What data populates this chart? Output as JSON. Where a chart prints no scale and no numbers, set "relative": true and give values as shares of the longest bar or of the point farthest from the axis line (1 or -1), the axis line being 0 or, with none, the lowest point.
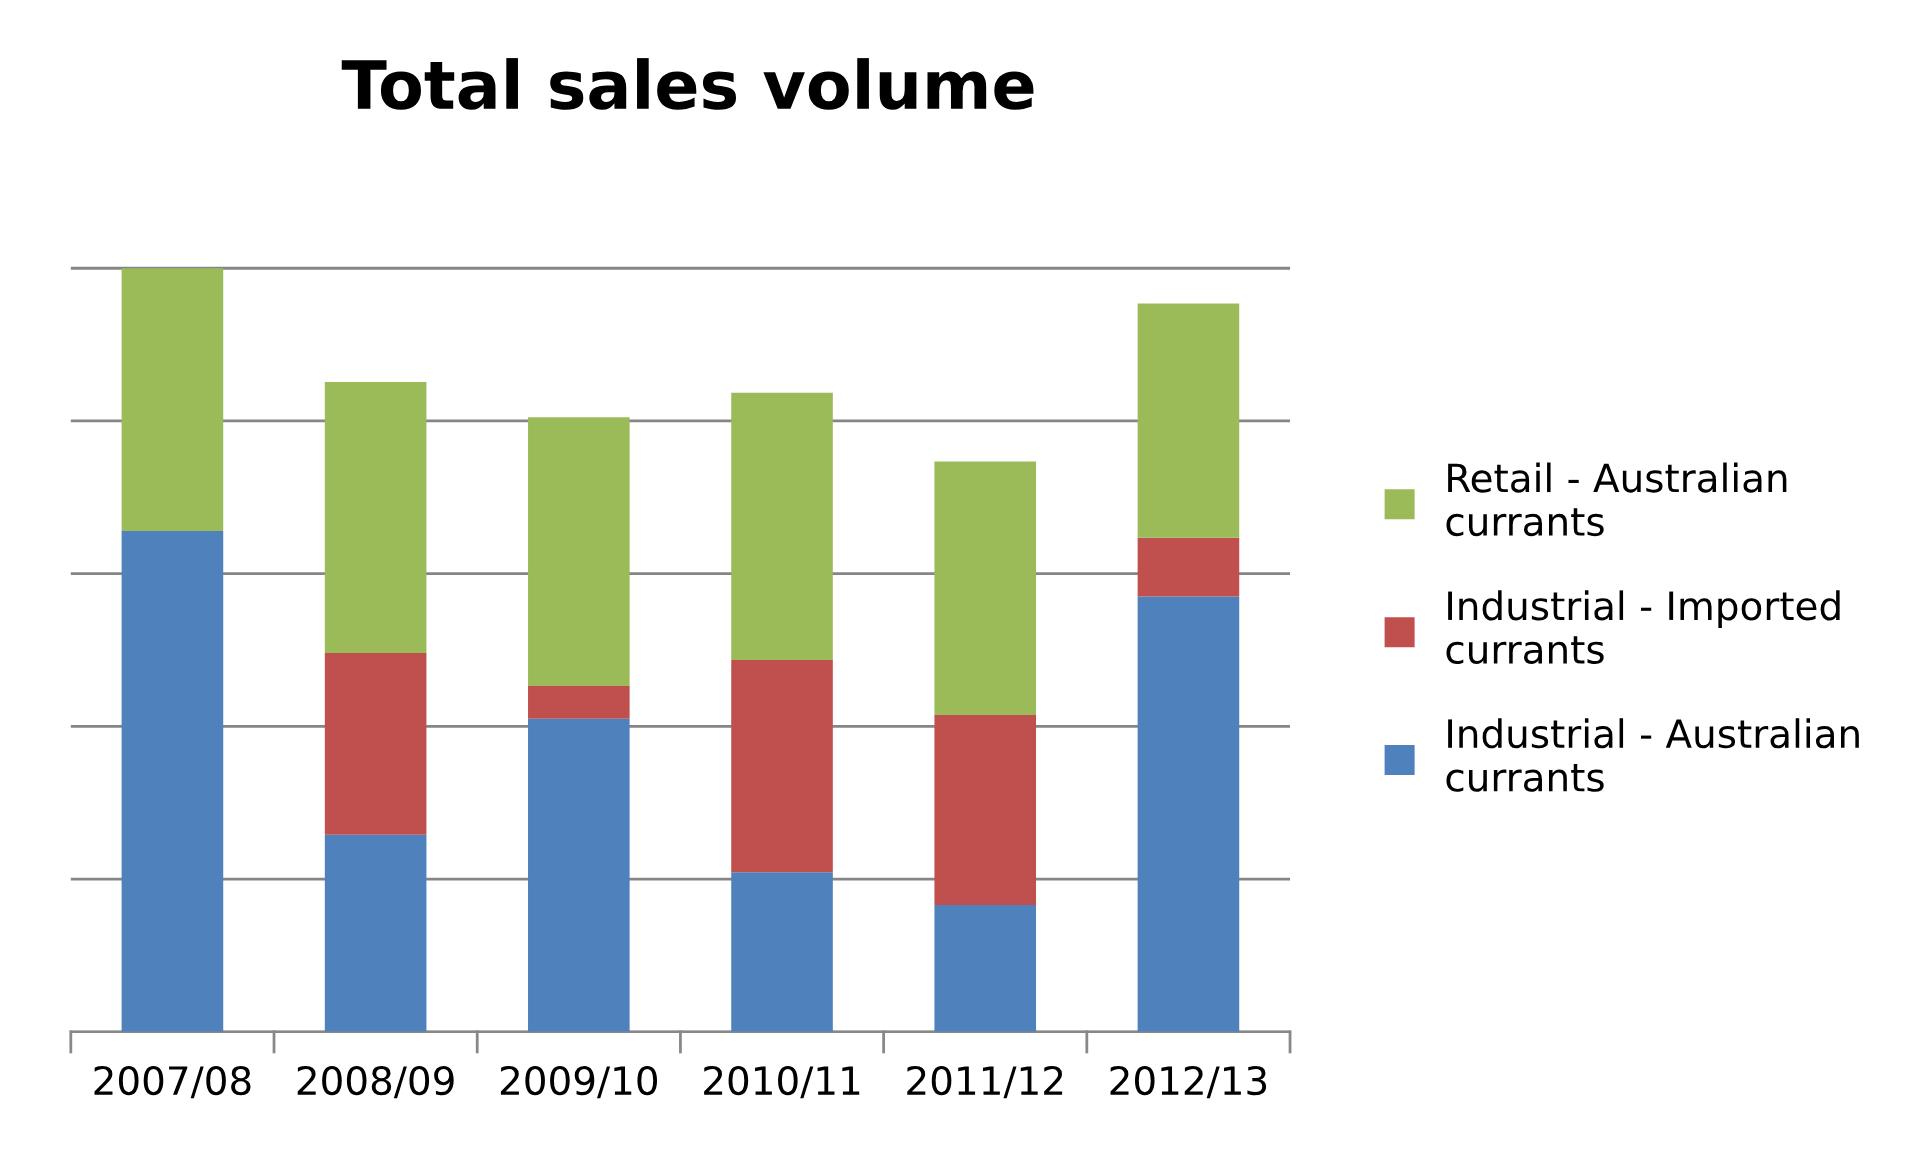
{
  "chart_data": {
    "type": "bar",
    "title": "Total sales volume",
    "stacked": true,
    "relative": true,
    "grid": "y",
    "legend": "right",
    "categories": [
      "2007/08",
      "2008/09",
      "2009/10",
      "2010/11",
      "2011/12",
      "2012/13"
    ],
    "series": [
      {
        "name": "Industrial - Australian currants",
        "color": "#4f81bd",
        "values": [
          0.656,
          0.258,
          0.41,
          0.209,
          0.166,
          0.57
        ]
      },
      {
        "name": "Industrial - Imported currants",
        "color": "#c0504d",
        "values": [
          0,
          0.238,
          0.043,
          0.278,
          0.249,
          0.077
        ]
      },
      {
        "name": "Retail - Australian currants",
        "color": "#9bbb59",
        "values": [
          0.344,
          0.355,
          0.352,
          0.35,
          0.332,
          0.307
        ]
      }
    ]
  }
}
